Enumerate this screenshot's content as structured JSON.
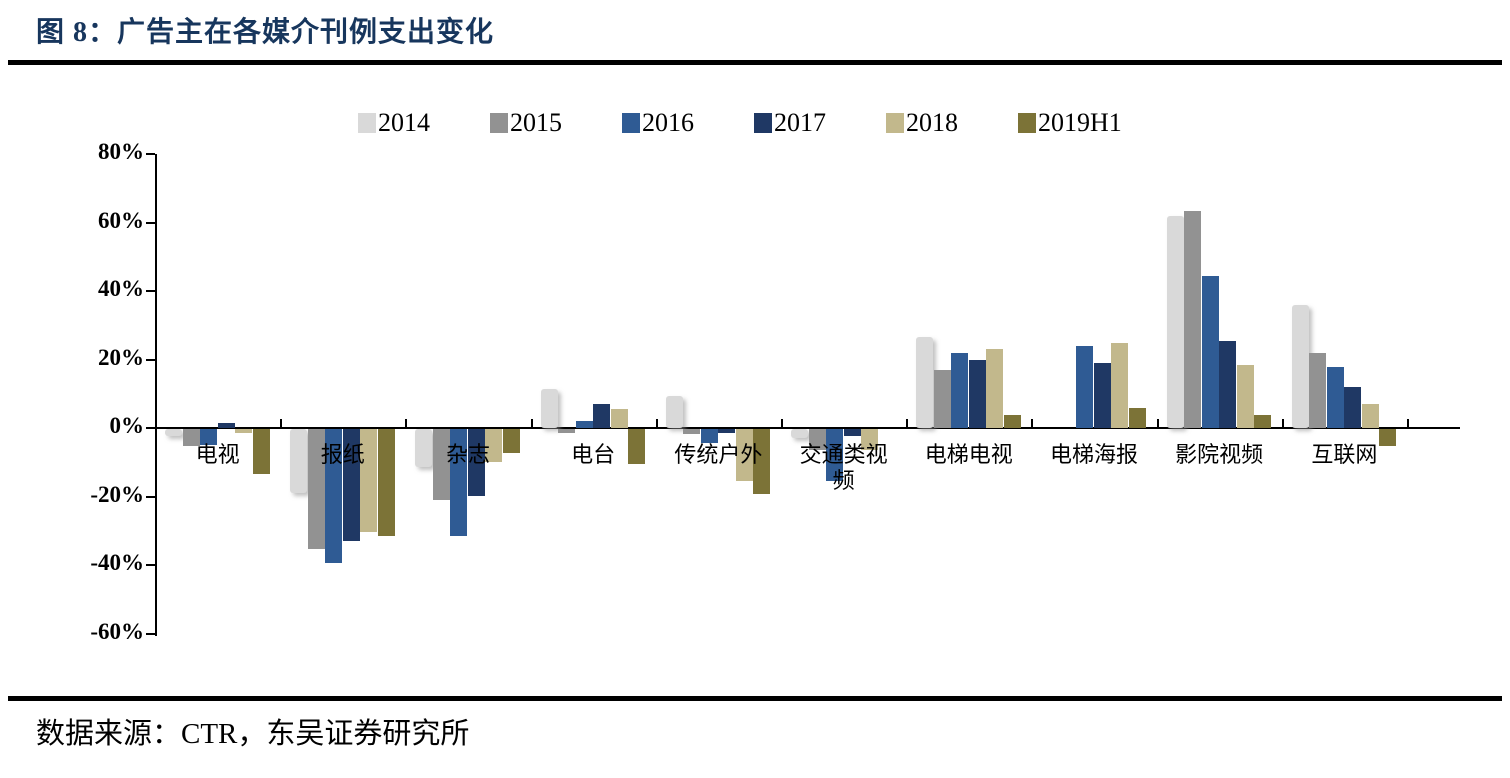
{
  "page": {
    "title": "图 8：广告主在各媒介刊例支出变化",
    "source_note": "数据来源：CTR，东吴证券研究所"
  },
  "colors": {
    "title_text": "#17365d",
    "axis": "#000000",
    "rule": "#000000"
  },
  "chart_data": {
    "type": "bar",
    "title": "广告主在各媒介刊例支出变化",
    "unit": "%",
    "ylim": [
      -60,
      80
    ],
    "ytick_step": 20,
    "ytick_labels": [
      "80%",
      "60%",
      "40%",
      "20%",
      "0%",
      "-20%",
      "-40%",
      "-60%"
    ],
    "grid": false,
    "legend_position": "top",
    "categories": [
      "电视",
      "报纸",
      "杂志",
      "电台",
      "传统户外",
      "交通类视频",
      "电梯电视",
      "电梯海报",
      "影院视频",
      "互联网"
    ],
    "series": [
      {
        "name": "2014",
        "color": "#d9d9d9",
        "values": [
          -2,
          -18.5,
          -11,
          11.5,
          9.5,
          -2.5,
          26.5,
          null,
          62,
          36
        ]
      },
      {
        "name": "2015",
        "color": "#929292",
        "values": [
          -5,
          -35,
          -20.5,
          -1,
          -1.5,
          -6,
          17,
          null,
          63.5,
          22
        ]
      },
      {
        "name": "2016",
        "color": "#2f5b94",
        "values": [
          -4.5,
          -39,
          -31,
          2,
          -4,
          -15,
          22,
          24,
          44.5,
          18
        ]
      },
      {
        "name": "2017",
        "color": "#1f3864",
        "values": [
          1.5,
          -32.5,
          -19.5,
          7,
          -1,
          -2,
          20,
          19,
          25.5,
          12
        ]
      },
      {
        "name": "2018",
        "color": "#c2b88c",
        "values": [
          -1,
          -30,
          -9.5,
          5.5,
          -15,
          -6,
          23,
          25,
          18.5,
          7
        ]
      },
      {
        "name": "2019H1",
        "color": "#7c7337",
        "values": [
          -13,
          -31,
          -7,
          -10,
          -19,
          null,
          4,
          6,
          4,
          -5
        ]
      }
    ]
  }
}
